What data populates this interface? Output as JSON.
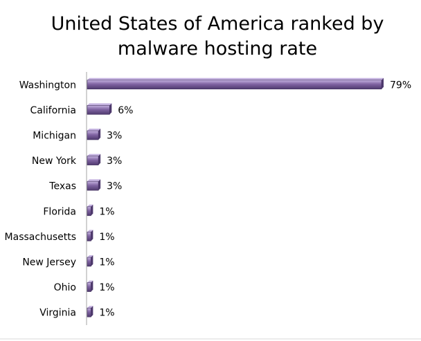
{
  "chart_data": {
    "type": "bar",
    "orientation": "horizontal",
    "title": "United States of America ranked by malware hosting rate",
    "title_lines": [
      "United States of America ranked by",
      "malware hosting rate"
    ],
    "xlabel": "",
    "ylabel": "",
    "categories": [
      "Washington",
      "California",
      "Michigan",
      "New York",
      "Texas",
      "Florida",
      "Massachusetts",
      "New Jersey",
      "Ohio",
      "Virginia"
    ],
    "values": [
      79,
      6,
      3,
      3,
      3,
      1,
      1,
      1,
      1,
      1
    ],
    "value_labels": [
      "79%",
      "6%",
      "3%",
      "3%",
      "3%",
      "1%",
      "1%",
      "1%",
      "1%",
      "1%"
    ],
    "unit": "%",
    "xlim": [
      0,
      79
    ],
    "grid": false,
    "legend": "none",
    "colors": {
      "bar": "#8064a2",
      "bar_light": "#c5b3e0",
      "bar_dark": "#4f3a6e",
      "bar_outline": "#3f2c5c"
    }
  }
}
